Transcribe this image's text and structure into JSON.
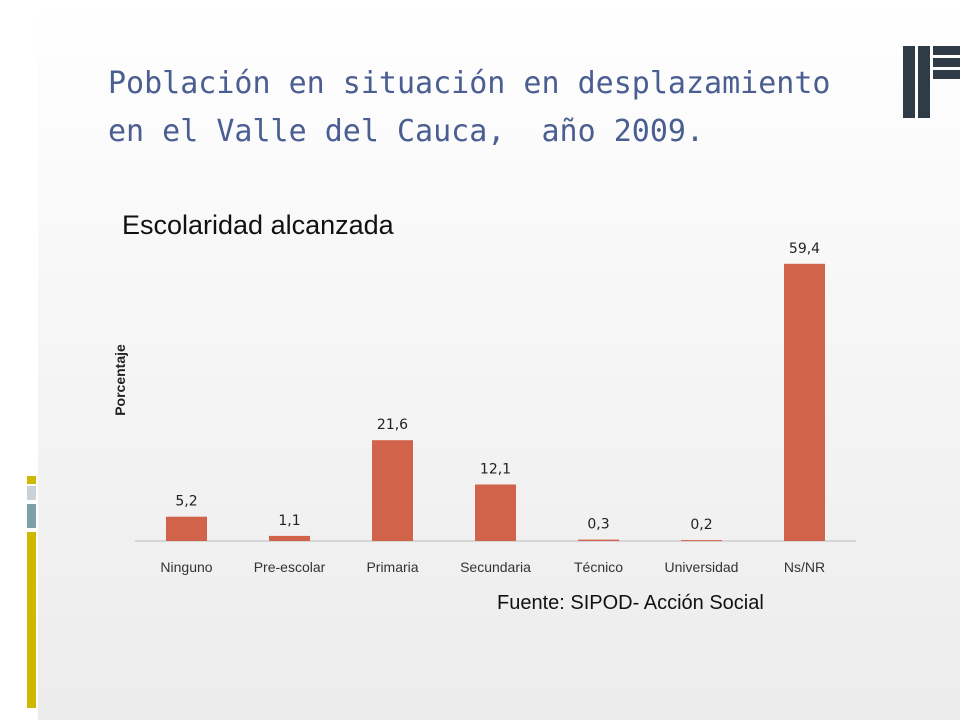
{
  "slide": {
    "title": "Población en situación en desplazamiento\nen el Valle del Cauca,  año 2009.",
    "source": "Fuente: SIPOD- Acción Social",
    "accent_color": "#d1b800",
    "title_color": "#4a5e92"
  },
  "chart_data": {
    "type": "bar",
    "title": "Escolaridad alcanzada",
    "xlabel": "",
    "ylabel": "Porcentaje",
    "categories": [
      "Ninguno",
      "Pre-escolar",
      "Primaria",
      "Secundaria",
      "Técnico",
      "Universidad",
      "Ns/NR"
    ],
    "values": [
      5.2,
      1.1,
      21.6,
      12.1,
      0.3,
      0.2,
      59.4
    ],
    "value_labels": [
      "5,2",
      "1,1",
      "21,6",
      "12,1",
      "0,3",
      "0,2",
      "59,4"
    ],
    "ylim": [
      0,
      60
    ],
    "bar_color": "#d1634b",
    "grid": false,
    "legend": "none"
  }
}
